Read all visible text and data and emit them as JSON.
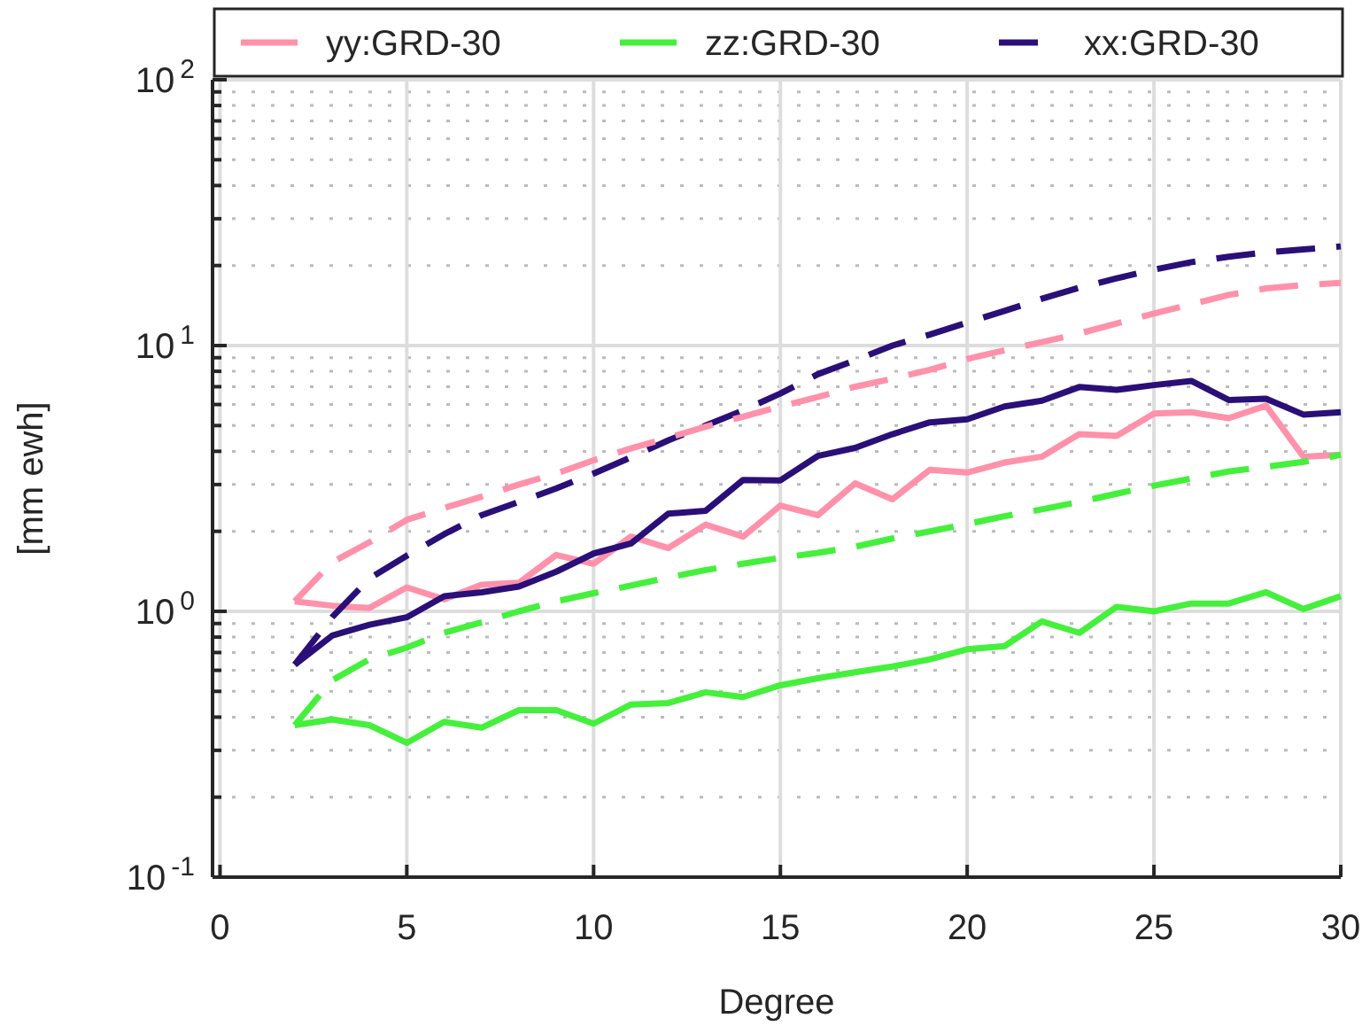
{
  "chart_data": {
    "type": "line",
    "xlabel": "Degree",
    "ylabel": "[mm ewh]",
    "log": "y",
    "grid": true,
    "legend": "top",
    "marker": "none",
    "x": [
      2,
      3,
      4,
      5,
      6,
      7,
      8,
      9,
      10,
      11,
      12,
      13,
      14,
      15,
      16,
      17,
      18,
      19,
      20,
      21,
      22,
      23,
      24,
      25,
      26,
      27,
      28,
      29,
      30
    ],
    "xlim": [
      -0.2,
      30
    ],
    "xticks": [
      0,
      5,
      10,
      15,
      20,
      25,
      30
    ],
    "ylim": [
      0.1,
      100
    ],
    "yticks": [
      {
        "value": 0.1,
        "label": "10$^{-1}$"
      },
      {
        "value": 0.2,
        "label": null
      },
      {
        "value": 0.3,
        "label": null
      },
      {
        "value": 0.4,
        "label": null
      },
      {
        "value": 0.5,
        "label": null
      },
      {
        "value": 0.6,
        "label": null
      },
      {
        "value": 0.7,
        "label": null
      },
      {
        "value": 0.8,
        "label": null
      },
      {
        "value": 0.9,
        "label": null
      },
      {
        "value": 1,
        "label": "10$^{0}$"
      },
      {
        "value": 2,
        "label": null
      },
      {
        "value": 3,
        "label": null
      },
      {
        "value": 4,
        "label": null
      },
      {
        "value": 5,
        "label": null
      },
      {
        "value": 6,
        "label": null
      },
      {
        "value": 7,
        "label": null
      },
      {
        "value": 8,
        "label": null
      },
      {
        "value": 9,
        "label": null
      },
      {
        "value": 10,
        "label": "10$^{1}$"
      },
      {
        "value": 20,
        "label": null
      },
      {
        "value": 30,
        "label": null
      },
      {
        "value": 40,
        "label": null
      },
      {
        "value": 50,
        "label": null
      },
      {
        "value": 60,
        "label": null
      },
      {
        "value": 70,
        "label": null
      },
      {
        "value": 80,
        "label": null
      },
      {
        "value": 90,
        "label": null
      },
      {
        "value": 100,
        "label": "10$^{2}$"
      }
    ],
    "series": [
      {
        "name": "yy:GRD-30",
        "color": "#ff91aa",
        "line_style": "solid",
        "values": [
          1.09,
          1.05,
          1.03,
          1.23,
          1.11,
          1.26,
          1.28,
          1.63,
          1.51,
          1.91,
          1.73,
          2.12,
          1.91,
          2.5,
          2.3,
          3.03,
          2.64,
          3.41,
          3.33,
          3.63,
          3.82,
          4.64,
          4.57,
          5.55,
          5.61,
          5.33,
          5.94,
          3.82,
          3.88
        ]
      },
      {
        "name": "zz:GRD-30",
        "color": "#44f03c",
        "line_style": "solid",
        "values": [
          0.373,
          0.392,
          0.373,
          0.32,
          0.384,
          0.365,
          0.425,
          0.425,
          0.378,
          0.446,
          0.452,
          0.496,
          0.476,
          0.527,
          0.56,
          0.59,
          0.62,
          0.66,
          0.72,
          0.74,
          0.916,
          0.83,
          1.04,
          1.0,
          1.07,
          1.07,
          1.18,
          1.02,
          1.14
        ]
      },
      {
        "name": "xx:GRD-30",
        "color": "#2a0f78",
        "line_style": "dashed",
        "values": [
          0.63,
          0.95,
          1.33,
          1.62,
          1.95,
          2.3,
          2.58,
          2.9,
          3.3,
          3.8,
          4.4,
          5.0,
          5.7,
          6.6,
          7.8,
          8.8,
          10.0,
          11.0,
          12.2,
          13.5,
          15.0,
          16.5,
          17.9,
          19.3,
          20.6,
          21.6,
          22.4,
          23.0,
          23.6
        ]
      },
      {
        "color": "#ff91aa",
        "line_style": "dashed",
        "values": [
          1.09,
          1.53,
          1.82,
          2.21,
          2.45,
          2.7,
          3.0,
          3.3,
          3.7,
          4.1,
          4.5,
          4.95,
          5.4,
          5.9,
          6.4,
          7.0,
          7.5,
          8.1,
          8.9,
          9.6,
          10.3,
          11.1,
          12.1,
          13.2,
          14.3,
          15.5,
          16.4,
          16.9,
          17.2
        ]
      },
      {
        "color": "#44f03c",
        "line_style": "dashed",
        "values": [
          0.373,
          0.55,
          0.66,
          0.73,
          0.83,
          0.91,
          1.0,
          1.09,
          1.17,
          1.25,
          1.34,
          1.43,
          1.51,
          1.59,
          1.66,
          1.75,
          1.88,
          2.0,
          2.13,
          2.28,
          2.42,
          2.58,
          2.77,
          2.97,
          3.16,
          3.36,
          3.5,
          3.65,
          3.88
        ]
      },
      {
        "color": "#2a0f78",
        "line_style": "solid",
        "values": [
          0.63,
          0.81,
          0.89,
          0.95,
          1.14,
          1.18,
          1.24,
          1.41,
          1.65,
          1.8,
          2.33,
          2.39,
          3.12,
          3.11,
          3.84,
          4.12,
          4.64,
          5.14,
          5.28,
          5.9,
          6.2,
          6.98,
          6.81,
          7.1,
          7.36,
          6.24,
          6.31,
          5.5,
          5.61
        ]
      }
    ]
  }
}
